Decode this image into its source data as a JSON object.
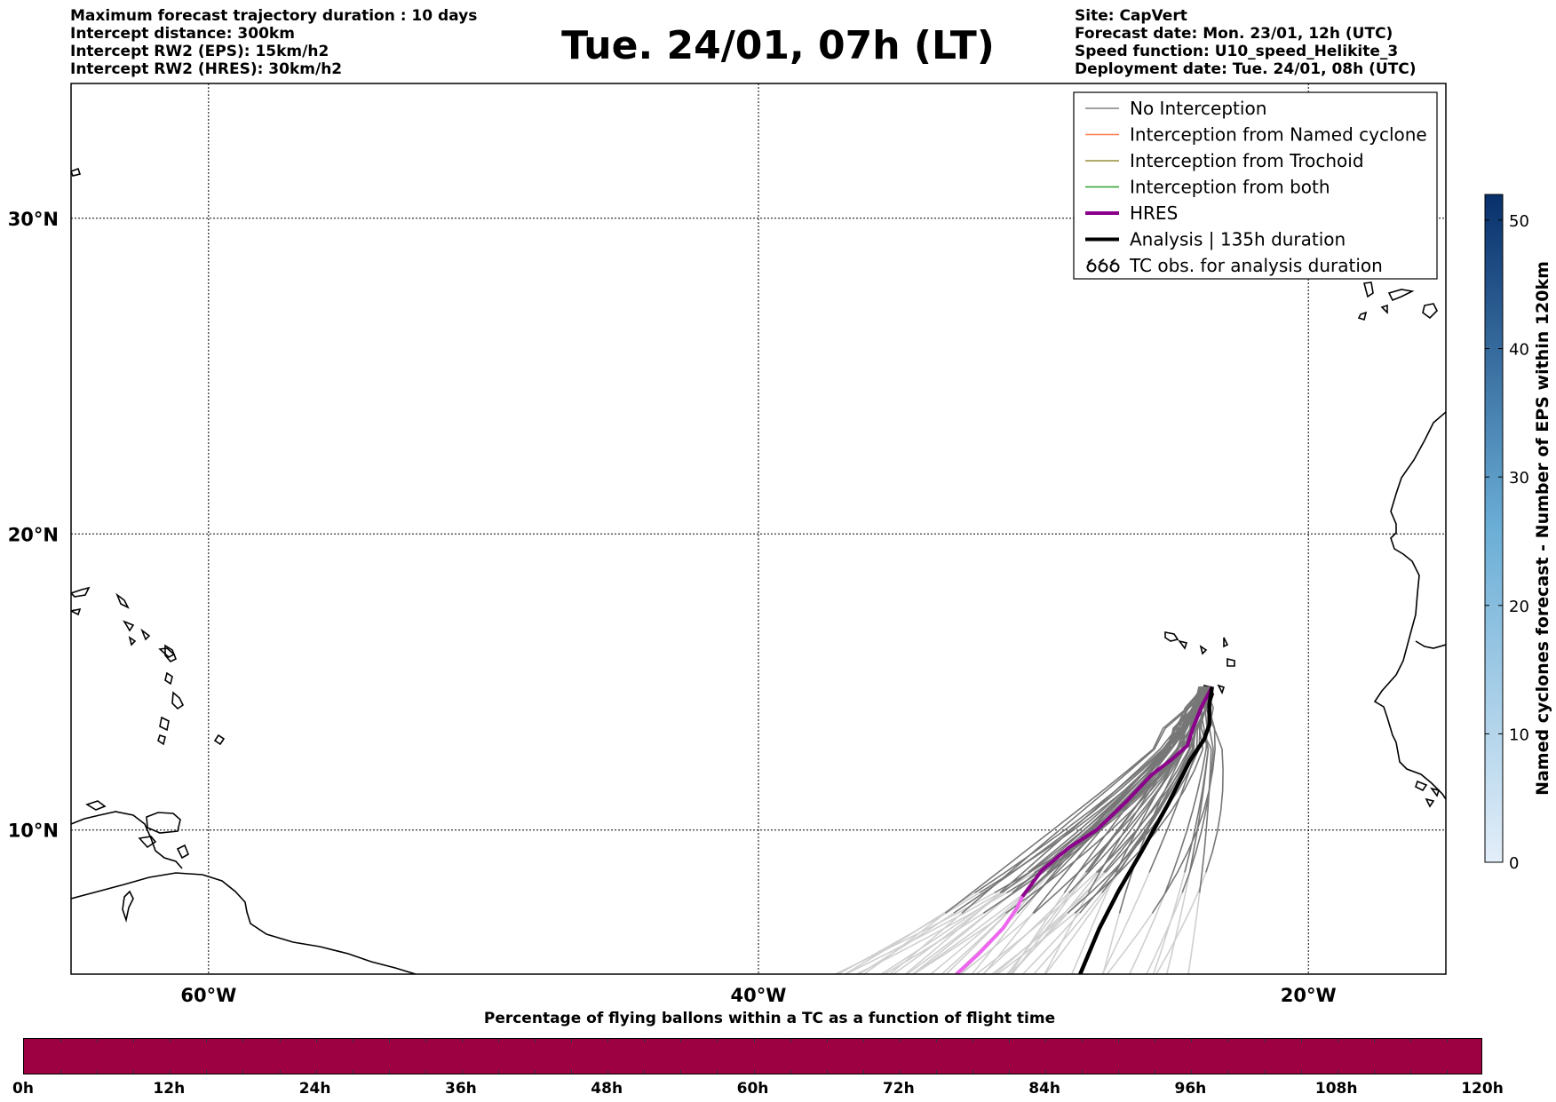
{
  "header_left": [
    "Maximum forecast trajectory duration : 10 days",
    "Intercept distance: 300km",
    "Intercept RW2 (EPS):  15km/h2",
    "Intercept RW2 (HRES): 30km/h2"
  ],
  "header_right": [
    "Site: CapVert",
    "Forecast date: Mon. 23/01, 12h (UTC)",
    "Speed function: U10_speed_Helikite_3",
    "Deployment date: Tue. 24/01, 08h (UTC)"
  ],
  "title": "Tue. 24/01, 07h (LT)",
  "map": {
    "lon_range": [
      -65,
      -15
    ],
    "lat_range": [
      5,
      34
    ],
    "lon_ticks": [
      {
        "value": -60,
        "label": "60°W"
      },
      {
        "value": -40,
        "label": "40°W"
      },
      {
        "value": -20,
        "label": "20°W"
      }
    ],
    "lat_ticks": [
      {
        "value": 30,
        "label": "30°N"
      },
      {
        "value": 20,
        "label": "20°N"
      },
      {
        "value": 10,
        "label": "10°N"
      }
    ],
    "grid": true,
    "legend_position": "top-right",
    "legend": [
      {
        "label": "No Interception",
        "color": "#808080",
        "style": "line-thin",
        "icon": "gray-line"
      },
      {
        "label": "Interception from Named cyclone",
        "color": "#ff7f50",
        "style": "line-thin",
        "icon": "coral-line"
      },
      {
        "label": "Interception from Trochoid",
        "color": "#9a8c3c",
        "style": "line-thin",
        "icon": "olive-line"
      },
      {
        "label": "Interception from both",
        "color": "#2ca02c",
        "style": "line-thin",
        "icon": "green-line"
      },
      {
        "label": "HRES",
        "color": "#8b008b",
        "style": "line-thick",
        "icon": "purple-line"
      },
      {
        "label": "Analysis | 135h duration",
        "color": "#000000",
        "style": "line-thick",
        "icon": "black-line"
      },
      {
        "label": "TC obs. for analysis duration",
        "color": "#000000",
        "style": "cyclone-symbols",
        "icon": "cyclone-symbol"
      }
    ],
    "deployment_site": {
      "lon": -23.5,
      "lat": 14.9
    },
    "hres_track": [
      [
        -23.5,
        14.9
      ],
      [
        -23.9,
        14.2
      ],
      [
        -24.2,
        13.5
      ],
      [
        -24.4,
        12.9
      ],
      [
        -25.0,
        12.4
      ],
      [
        -25.7,
        11.9
      ],
      [
        -26.6,
        11.0
      ],
      [
        -27.7,
        10.0
      ],
      [
        -28.7,
        9.4
      ],
      [
        -29.7,
        8.6
      ],
      [
        -30.4,
        7.7
      ],
      [
        -30.6,
        7.3
      ],
      [
        -31.1,
        6.6
      ],
      [
        -32.0,
        5.7
      ],
      [
        -32.8,
        5.0
      ]
    ],
    "analysis_track": [
      [
        -23.5,
        14.9
      ],
      [
        -23.6,
        14.3
      ],
      [
        -23.6,
        13.6
      ],
      [
        -23.8,
        13.1
      ],
      [
        -24.3,
        12.4
      ],
      [
        -25.1,
        10.9
      ],
      [
        -26.1,
        9.2
      ],
      [
        -26.9,
        7.9
      ],
      [
        -27.6,
        6.6
      ],
      [
        -28.3,
        5.0
      ]
    ]
  },
  "colorbar": {
    "label": "Named cyclones forecast - Number of EPS within 120km",
    "min": 0,
    "max": 52,
    "ticks": [
      0,
      10,
      20,
      30,
      40,
      50
    ],
    "color_low": "#e3eef9",
    "color_high": "#08306b"
  },
  "strip": {
    "title": "Percentage of flying ballons within a TC as a function of flight time",
    "color": "#9e0142",
    "ticks": [
      "0h",
      "12h",
      "24h",
      "36h",
      "48h",
      "60h",
      "72h",
      "84h",
      "96h",
      "108h",
      "120h"
    ]
  }
}
